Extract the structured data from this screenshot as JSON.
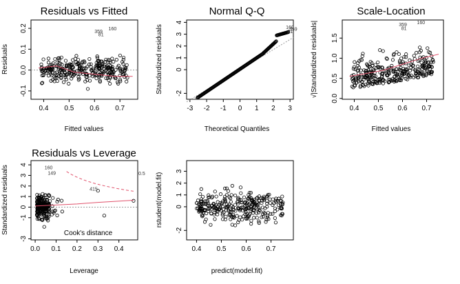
{
  "chart_data": [
    {
      "id": "resfit",
      "type": "scatter",
      "title": "Residuals vs Fitted",
      "xlabel": "Fitted values",
      "ylabel": "Residuals",
      "xlim": [
        0.35,
        0.77
      ],
      "ylim": [
        -0.14,
        0.24
      ],
      "xticks": [
        0.4,
        0.5,
        0.6,
        0.7
      ],
      "xtick_labels": [
        "0.4",
        "0.5",
        "0.6",
        "0.7"
      ],
      "yticks": [
        -0.1,
        0.0,
        0.1,
        0.2
      ],
      "ytick_labels": [
        "-0.1",
        "0.0",
        "0.1",
        "0.2"
      ],
      "refline": 0,
      "smooth": [
        [
          0.38,
          0.01
        ],
        [
          0.45,
          0.02
        ],
        [
          0.52,
          -0.01
        ],
        [
          0.6,
          -0.02
        ],
        [
          0.68,
          -0.03
        ],
        [
          0.75,
          -0.03
        ]
      ],
      "annotations": [
        {
          "text": "160",
          "x": 0.655,
          "y": 0.19
        },
        {
          "text": "359",
          "x": 0.6,
          "y": 0.177
        },
        {
          "text": "81",
          "x": 0.615,
          "y": 0.162
        }
      ],
      "colors": {
        "smooth": "#e0506a",
        "ref": "#999999"
      }
    },
    {
      "id": "qq",
      "type": "scatter",
      "title": "Normal Q-Q",
      "xlabel": "Theoretical Quantiles",
      "ylabel": "Standardized residuals",
      "xlim": [
        -3.2,
        3.2
      ],
      "ylim": [
        -2.5,
        4.2
      ],
      "xticks": [
        -3,
        -2,
        -1,
        0,
        1,
        2,
        3
      ],
      "xtick_labels": [
        "-3",
        "-2",
        "-1",
        "0",
        "1",
        "2",
        "3"
      ],
      "yticks": [
        -2,
        0,
        1,
        2,
        3,
        4
      ],
      "ytick_labels": [
        "-2",
        "0",
        "1",
        "2",
        "3",
        "4"
      ],
      "annotations": [
        {
          "text": "160",
          "x": 2.75,
          "y": 3.45
        },
        {
          "text": "359",
          "x": 2.95,
          "y": 3.3
        },
        {
          "text": "81",
          "x": 2.85,
          "y": 3.1
        }
      ],
      "colors": {
        "ref": "#999999"
      }
    },
    {
      "id": "scaleloc",
      "type": "scatter",
      "title": "Scale-Location",
      "xlabel": "Fitted values",
      "ylabel": "√|Standardized residuals|",
      "xlim": [
        0.35,
        0.77
      ],
      "ylim": [
        -0.02,
        1.95
      ],
      "xticks": [
        0.4,
        0.5,
        0.6,
        0.7
      ],
      "xtick_labels": [
        "0.4",
        "0.5",
        "0.6",
        "0.7"
      ],
      "yticks": [
        0.0,
        0.5,
        1.0,
        1.5
      ],
      "ytick_labels": [
        "0.0",
        "0.5",
        "1.0",
        "1.5"
      ],
      "smooth": [
        [
          0.38,
          0.55
        ],
        [
          0.45,
          0.62
        ],
        [
          0.52,
          0.7
        ],
        [
          0.6,
          0.85
        ],
        [
          0.68,
          1.0
        ],
        [
          0.75,
          1.1
        ]
      ],
      "annotations": [
        {
          "text": "160",
          "x": 0.66,
          "y": 1.85
        },
        {
          "text": "359",
          "x": 0.585,
          "y": 1.8
        },
        {
          "text": "81",
          "x": 0.595,
          "y": 1.7
        }
      ],
      "colors": {
        "smooth": "#e0506a"
      }
    },
    {
      "id": "resleverage",
      "type": "scatter",
      "title": "Residuals vs Leverage",
      "xlabel": "Leverage",
      "ylabel": "Standardized residuals",
      "xlim": [
        -0.02,
        0.49
      ],
      "ylim": [
        -3.1,
        4.4
      ],
      "xticks": [
        0.0,
        0.1,
        0.2,
        0.3,
        0.4
      ],
      "xtick_labels": [
        "0.0",
        "0.1",
        "0.2",
        "0.3",
        "0.4"
      ],
      "yticks": [
        -3,
        -1,
        0,
        1,
        2,
        3,
        4
      ],
      "ytick_labels": [
        "-3",
        "-1",
        "0",
        "1",
        "2",
        "3",
        "4"
      ],
      "cook_label": "Cook's distance",
      "cook_level_label": "0.5",
      "smooth": [
        [
          0.0,
          0.1
        ],
        [
          0.1,
          0.2
        ],
        [
          0.2,
          0.3
        ],
        [
          0.3,
          0.45
        ],
        [
          0.47,
          0.65
        ]
      ],
      "annotations": [
        {
          "text": "160",
          "x": 0.045,
          "y": 3.6
        },
        {
          "text": "149",
          "x": 0.06,
          "y": 3.05
        },
        {
          "text": "415",
          "x": 0.26,
          "y": 1.55
        }
      ],
      "colors": {
        "smooth": "#e0506a",
        "cook": "#e0506a",
        "ref": "#999999"
      }
    },
    {
      "id": "rstudent",
      "type": "scatter",
      "title": "",
      "xlabel": "predict(model.fit)",
      "ylabel": "rstudent(model.fit)",
      "xlim": [
        0.36,
        0.79
      ],
      "ylim": [
        -2.8,
        3.9
      ],
      "xticks": [
        0.4,
        0.5,
        0.6,
        0.7
      ],
      "xtick_labels": [
        "0.4",
        "0.5",
        "0.6",
        "0.7"
      ],
      "yticks": [
        -2,
        0,
        1,
        2,
        3
      ],
      "ytick_labels": [
        "-2",
        "0",
        "1",
        "2",
        "3"
      ]
    }
  ]
}
